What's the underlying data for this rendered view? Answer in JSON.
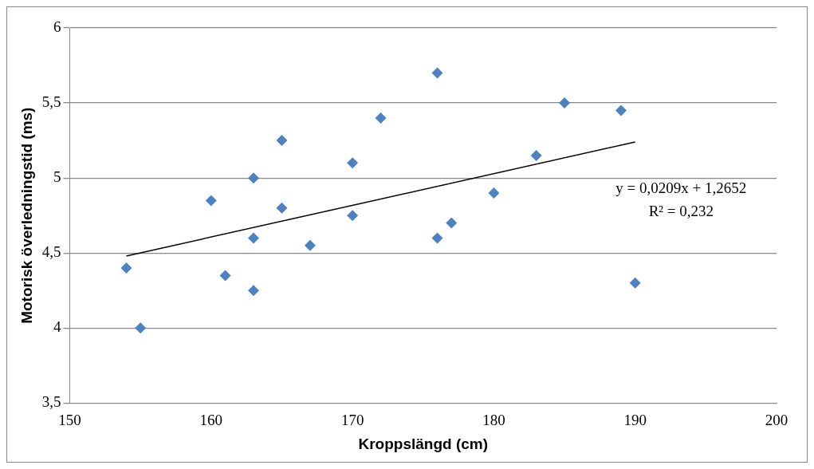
{
  "chart_data": {
    "type": "scatter",
    "xlabel": "Kroppslängd (cm)",
    "ylabel": "Motorisk överledningstid (ms)",
    "x": [
      154,
      155,
      160,
      161,
      163,
      163,
      163,
      165,
      165,
      167,
      170,
      170,
      172,
      176,
      176,
      177,
      180,
      183,
      185,
      189,
      190
    ],
    "series": [
      {
        "color": "#4f81bd",
        "values": [
          4.4,
          4.0,
          4.85,
          4.35,
          5.0,
          4.6,
          4.25,
          5.25,
          4.8,
          4.55,
          5.1,
          4.75,
          5.4,
          5.7,
          4.6,
          4.7,
          4.9,
          5.15,
          5.5,
          5.45,
          4.3
        ]
      },
      {
        "type": "line",
        "color": "#000000",
        "x": [
          154,
          190
        ],
        "values": [
          4.48,
          5.24
        ],
        "marker": "none"
      }
    ],
    "xlim": [
      150,
      200
    ],
    "xticks": [
      150,
      160,
      170,
      180,
      190,
      200
    ],
    "ylim": [
      3.5,
      6
    ],
    "yticks": [
      {
        "value": 3.5,
        "label": "3,5"
      },
      4,
      {
        "value": 4.5,
        "label": "4,5"
      },
      5,
      {
        "value": 5.5,
        "label": "5,5"
      },
      6
    ],
    "grid": "y",
    "legend": false,
    "marker": "diamond",
    "annotations": [
      "y = 0,0209x + 1,2652",
      "R² = 0,232"
    ]
  }
}
